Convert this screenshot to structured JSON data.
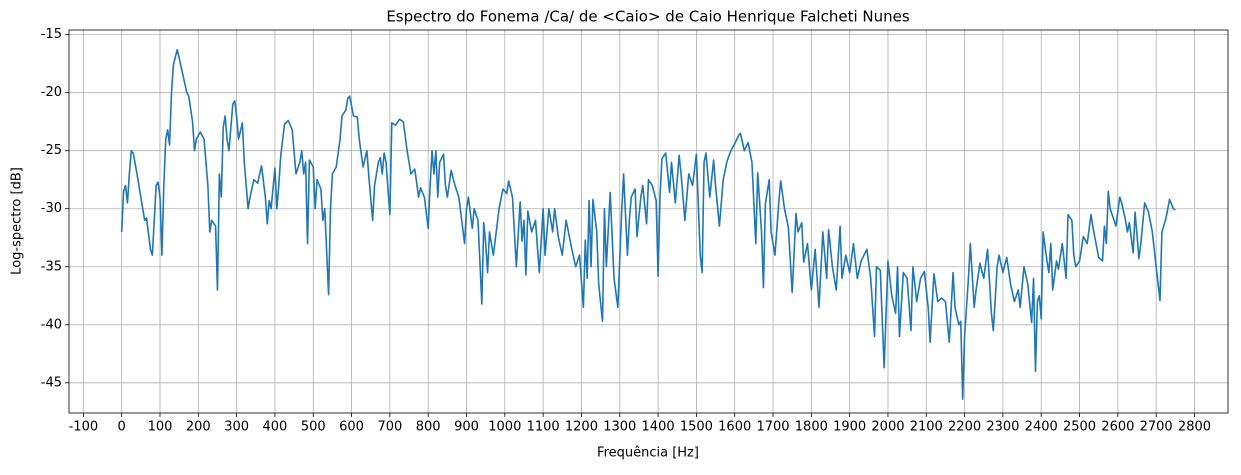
{
  "chart_data": {
    "type": "line",
    "title": "Espectro do Fonema /Ca/ de <Caio> de Caio Henrique Falcheti Nunes",
    "x_label": "Frequência [Hz]",
    "y_label": "Log-spectro [dB]",
    "x": [
      0,
      5,
      10,
      15,
      20,
      25,
      30,
      40,
      50,
      60,
      65,
      75,
      80,
      85,
      90,
      95,
      100,
      105,
      110,
      115,
      120,
      125,
      130,
      135,
      145,
      150,
      160,
      170,
      175,
      185,
      190,
      195,
      205,
      215,
      225,
      230,
      235,
      245,
      250,
      255,
      260,
      265,
      270,
      275,
      280,
      290,
      295,
      300,
      305,
      315,
      320,
      330,
      335,
      345,
      355,
      365,
      375,
      380,
      385,
      390,
      400,
      405,
      410,
      415,
      425,
      435,
      445,
      455,
      465,
      470,
      475,
      480,
      485,
      490,
      500,
      505,
      510,
      520,
      525,
      530,
      540,
      545,
      550,
      560,
      570,
      575,
      585,
      590,
      595,
      605,
      615,
      620,
      630,
      640,
      645,
      655,
      660,
      670,
      675,
      680,
      685,
      690,
      700,
      705,
      715,
      725,
      735,
      745,
      755,
      765,
      775,
      780,
      790,
      800,
      805,
      810,
      815,
      820,
      825,
      830,
      840,
      845,
      850,
      860,
      870,
      880,
      895,
      900,
      905,
      915,
      920,
      930,
      940,
      945,
      950,
      955,
      960,
      970,
      985,
      995,
      1005,
      1010,
      1020,
      1025,
      1030,
      1040,
      1045,
      1050,
      1055,
      1060,
      1070,
      1080,
      1090,
      1100,
      1105,
      1115,
      1125,
      1130,
      1140,
      1150,
      1160,
      1175,
      1185,
      1195,
      1205,
      1210,
      1215,
      1220,
      1225,
      1230,
      1240,
      1245,
      1255,
      1260,
      1265,
      1275,
      1285,
      1295,
      1305,
      1310,
      1320,
      1325,
      1330,
      1340,
      1345,
      1355,
      1360,
      1370,
      1375,
      1385,
      1395,
      1400,
      1405,
      1410,
      1420,
      1430,
      1435,
      1445,
      1455,
      1460,
      1470,
      1480,
      1490,
      1500,
      1510,
      1515,
      1520,
      1525,
      1535,
      1545,
      1550,
      1560,
      1570,
      1580,
      1590,
      1600,
      1610,
      1615,
      1625,
      1635,
      1645,
      1655,
      1660,
      1670,
      1675,
      1680,
      1690,
      1695,
      1705,
      1715,
      1720,
      1730,
      1740,
      1750,
      1760,
      1765,
      1775,
      1780,
      1790,
      1800,
      1810,
      1820,
      1830,
      1840,
      1845,
      1855,
      1865,
      1875,
      1880,
      1890,
      1900,
      1910,
      1920,
      1930,
      1945,
      1955,
      1965,
      1970,
      1980,
      1990,
      2000,
      2010,
      2020,
      2025,
      2030,
      2040,
      2050,
      2060,
      2065,
      2075,
      2085,
      2095,
      2105,
      2110,
      2120,
      2130,
      2140,
      2150,
      2160,
      2170,
      2175,
      2185,
      2190,
      2195,
      2200,
      2210,
      2215,
      2225,
      2230,
      2240,
      2250,
      2260,
      2270,
      2275,
      2285,
      2290,
      2300,
      2310,
      2320,
      2330,
      2340,
      2345,
      2355,
      2365,
      2375,
      2380,
      2385,
      2390,
      2395,
      2400,
      2405,
      2415,
      2420,
      2425,
      2430,
      2440,
      2445,
      2455,
      2465,
      2470,
      2480,
      2485,
      2490,
      2500,
      2510,
      2520,
      2530,
      2535,
      2550,
      2560,
      2565,
      2570,
      2575,
      2580,
      2595,
      2605,
      2610,
      2620,
      2625,
      2630,
      2640,
      2645,
      2655,
      2660,
      2670,
      2680,
      2690,
      2700,
      2710,
      2715,
      2725,
      2735,
      2745,
      2750
    ],
    "series": [
      {
        "color": "#1f77b4",
        "values": [
          -32,
          -28.5,
          -28,
          -29.5,
          -27,
          -25,
          -25.2,
          -27,
          -29,
          -31,
          -30.8,
          -33.5,
          -34,
          -31,
          -28,
          -27.7,
          -29,
          -34,
          -28,
          -24,
          -23.2,
          -24.5,
          -20,
          -17.6,
          -16.3,
          -17,
          -18.5,
          -20,
          -20.3,
          -22.5,
          -25,
          -24,
          -23.4,
          -24,
          -28,
          -32,
          -31,
          -31.5,
          -37,
          -27,
          -29,
          -23,
          -22,
          -24,
          -25,
          -21,
          -20.7,
          -22,
          -24,
          -22.6,
          -26,
          -30,
          -29,
          -27.5,
          -27.8,
          -26.3,
          -29,
          -31.3,
          -29.3,
          -30,
          -26.5,
          -30,
          -28,
          -25.5,
          -22.7,
          -22.4,
          -23.2,
          -27,
          -26,
          -25,
          -27,
          -26,
          -33,
          -25.8,
          -26.4,
          -30,
          -27.5,
          -28.3,
          -31,
          -30,
          -37.4,
          -30,
          -27,
          -26.4,
          -24,
          -22,
          -21.5,
          -20.5,
          -20.3,
          -22,
          -22.1,
          -24,
          -26.4,
          -25,
          -27.2,
          -31,
          -28,
          -26,
          -25.6,
          -27,
          -25.2,
          -26,
          -30.5,
          -22.6,
          -22.8,
          -22.3,
          -22.5,
          -25,
          -27,
          -26.6,
          -29,
          -28.2,
          -29,
          -31.7,
          -28,
          -25,
          -27,
          -25,
          -29,
          -26,
          -25.3,
          -28,
          -29,
          -26.7,
          -28,
          -29,
          -33,
          -30,
          -29,
          -31.7,
          -30,
          -31,
          -38.2,
          -31.2,
          -33,
          -35.5,
          -32,
          -34,
          -30,
          -28.3,
          -28.7,
          -27.6,
          -29,
          -32,
          -35,
          -29.4,
          -32.8,
          -31,
          -35.7,
          -30.2,
          -32,
          -31,
          -35.5,
          -30,
          -34,
          -30,
          -32,
          -30,
          -32.5,
          -34,
          -31,
          -33.5,
          -35,
          -34,
          -38.5,
          -32.7,
          -36,
          -29.3,
          -35,
          -29.2,
          -32,
          -36.5,
          -39.7,
          -30,
          -35,
          -28.6,
          -36,
          -38.5,
          -30.2,
          -27,
          -34,
          -31,
          -29,
          -28.3,
          -32.4,
          -29,
          -28,
          -31.3,
          -27.5,
          -28,
          -29.3,
          -35.8,
          -29,
          -25.7,
          -25.2,
          -28.6,
          -26,
          -29.5,
          -25.4,
          -27,
          -31,
          -27,
          -28,
          -25.3,
          -34,
          -35.5,
          -26,
          -25.2,
          -29,
          -25.8,
          -28,
          -31.5,
          -27.5,
          -25.9,
          -25,
          -24.4,
          -23.7,
          -23.5,
          -25,
          -24.3,
          -26,
          -33,
          -26.9,
          -32,
          -36.8,
          -29.6,
          -27.5,
          -32,
          -34,
          -29.5,
          -27.6,
          -30,
          -31.6,
          -37.2,
          -30.4,
          -32,
          -31.2,
          -34.6,
          -33,
          -37,
          -33.5,
          -38.5,
          -32,
          -36,
          -31.8,
          -35,
          -37,
          -31.5,
          -36,
          -34,
          -35.5,
          -33,
          -36,
          -34.5,
          -33.5,
          -36,
          -41,
          -35,
          -35.3,
          -43.7,
          -34.5,
          -37.5,
          -39,
          -35,
          -41,
          -35.5,
          -36,
          -40.5,
          -35,
          -38,
          -36,
          -35.4,
          -38.5,
          -41.5,
          -35.6,
          -38,
          -37.7,
          -38,
          -41.5,
          -35.5,
          -38.5,
          -40,
          -39.7,
          -46.4,
          -41,
          -36,
          -33,
          -38.5,
          -37,
          -34.7,
          -36,
          -33.5,
          -39,
          -40.5,
          -35,
          -34,
          -35.5,
          -34.2,
          -36.5,
          -38,
          -37,
          -38.5,
          -35,
          -36.5,
          -39.8,
          -36,
          -44,
          -38,
          -37.5,
          -39.5,
          -32,
          -34.5,
          -35.5,
          -33,
          -37,
          -34.5,
          -35.2,
          -33,
          -36,
          -30.5,
          -31,
          -34,
          -35,
          -34.5,
          -32.4,
          -33,
          -30.5,
          -31.6,
          -34.2,
          -34.5,
          -31.5,
          -33,
          -28.5,
          -30,
          -31.5,
          -29,
          -29.5,
          -31,
          -32,
          -31.2,
          -33.8,
          -30.3,
          -34.3,
          -33,
          -29.5,
          -30.3,
          -32,
          -35,
          -37.9,
          -32,
          -30.9,
          -29.2,
          -30,
          -30.1
        ]
      }
    ],
    "xlim": [
      -137.5,
      2887.5
    ],
    "ylim": [
      -47.6,
      -14.6
    ],
    "xticks": [
      -100,
      0,
      100,
      200,
      300,
      400,
      500,
      600,
      700,
      800,
      900,
      1000,
      1100,
      1200,
      1300,
      1400,
      1500,
      1600,
      1700,
      1800,
      1900,
      2000,
      2100,
      2200,
      2300,
      2400,
      2500,
      2600,
      2700,
      2800
    ],
    "yticks": [
      -45,
      -40,
      -35,
      -30,
      -25,
      -20,
      -15
    ],
    "grid": true
  }
}
